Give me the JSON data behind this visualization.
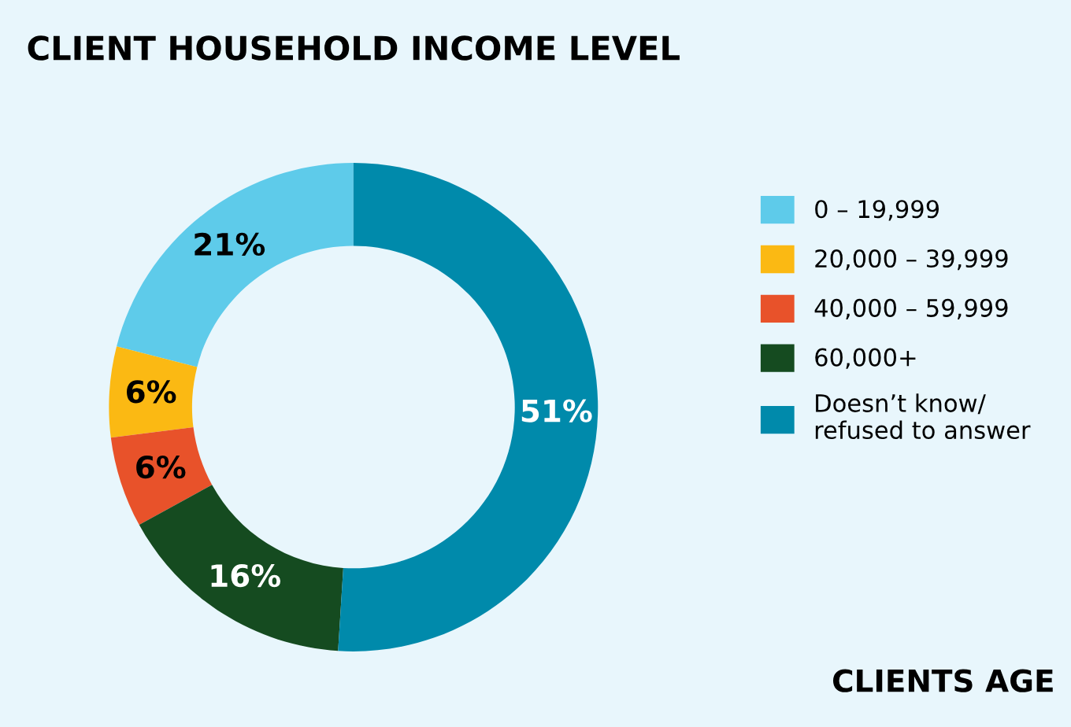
{
  "chart_data": {
    "type": "donut",
    "title": "CLIENT HOUSEHOLD INCOME LEVEL",
    "categories": [
      "0 – 19,999",
      "20,000 – 39,999",
      "40,000 – 59,999",
      "60,000+",
      "Doesn’t know/\nrefused to answer"
    ],
    "values": [
      21,
      6,
      6,
      16,
      51
    ],
    "value_labels": [
      "21%",
      "6%",
      "6%",
      "16%",
      "51%"
    ],
    "colors": [
      "#5ecbea",
      "#fbb913",
      "#e8522a",
      "#154b20",
      "#008aab"
    ],
    "legend": "right",
    "annotations": [
      "CLIENTS AGE"
    ]
  }
}
